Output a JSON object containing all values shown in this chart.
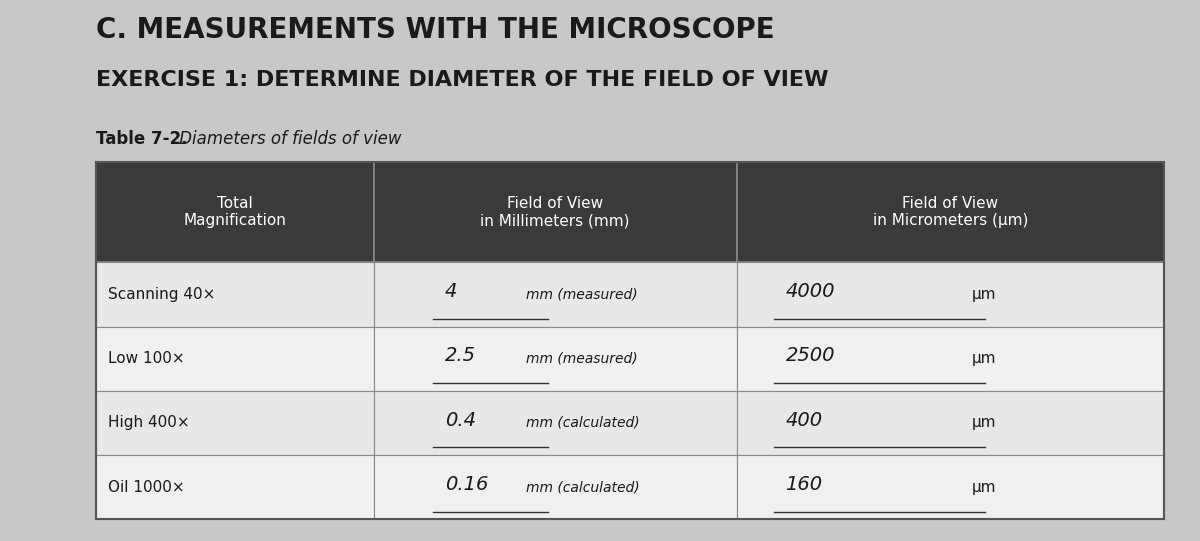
{
  "title1": "C. MEASUREMENTS WITH THE MICROSCOPE",
  "title2": "EXERCISE 1: DETERMINE DIAMETER OF THE FIELD OF VIEW",
  "table_label": "Table 7-2.",
  "table_label2": " Diameters of fields of view",
  "col_headers": [
    "Total\nMagnification",
    "Field of View\nin Millimeters (mm)",
    "Field of View\nin Micrometers (μm)"
  ],
  "rows": [
    [
      "Scanning 40×",
      "4    mm (measured)",
      "4000 μm"
    ],
    [
      "Low 100×",
      "2.5  mm (measured)",
      "2500 μm"
    ],
    [
      "High 400×",
      "0.4  mm (calculated)",
      "400   μm"
    ],
    [
      "Oil 1000×",
      "0.16 mm (calculated)",
      "160   μm"
    ]
  ],
  "handwritten_mm": [
    "4",
    "2.5",
    "0.4",
    "0.16"
  ],
  "handwritten_um": [
    "4000",
    "2500",
    "400",
    "160"
  ],
  "bg_color": "#d0d0d0",
  "header_bg": "#3a3a3a",
  "header_fg": "#ffffff",
  "row_bg_light": "#e8e8e8",
  "row_bg_lighter": "#f0f0f0",
  "page_bg": "#c8c8c8",
  "title_color": "#1a1a1a",
  "cell_text_color": "#1a1a1a",
  "handwritten_color": "#1a1a1a"
}
